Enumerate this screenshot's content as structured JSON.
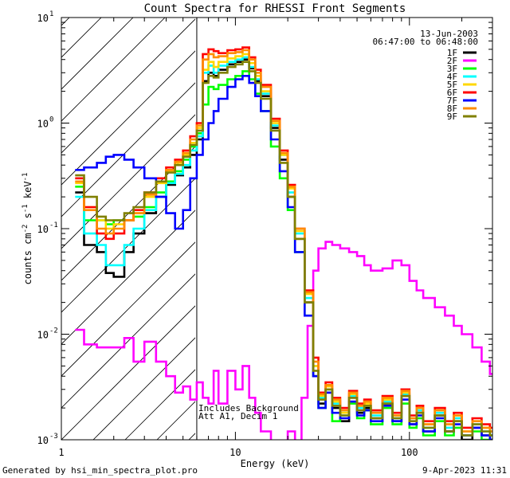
{
  "chart_data": {
    "type": "line",
    "title": "Count Spectra for RHESSI Front Segments",
    "xlabel": "Energy (keV)",
    "ylabel": "counts cm-2 s-1 keV-1",
    "x_scale": "log",
    "y_scale": "log",
    "xlim": [
      1.0,
      300.0
    ],
    "ylim": [
      0.001,
      10.0
    ],
    "x_ticks": [
      {
        "value": 1,
        "label": "1"
      },
      {
        "value": 10,
        "label": "10"
      },
      {
        "value": 100,
        "label": "100"
      }
    ],
    "y_ticks": [
      {
        "value": 0.001,
        "base": "10",
        "exp": "-3"
      },
      {
        "value": 0.01,
        "base": "10",
        "exp": "-2"
      },
      {
        "value": 0.1,
        "base": "10",
        "exp": "-1"
      },
      {
        "value": 1,
        "base": "10",
        "exp": "0"
      },
      {
        "value": 10,
        "base": "10",
        "exp": "1"
      }
    ],
    "hatched_region_keV": [
      1.0,
      6.0
    ],
    "date": "13-Jun-2003",
    "time_range": "06:47:00 to 06:48:00",
    "annotation_line1": "Includes Background",
    "annotation_line2": "Att A1, Decim 1",
    "footer_left": "Generated by hsi_min_spectra_plot.pro",
    "footer_right": "9-Apr-2023 11:31",
    "series": [
      {
        "name": "1F",
        "color": "#000000",
        "x": [
          1.2,
          1.35,
          1.6,
          1.8,
          2.0,
          2.3,
          2.6,
          3.0,
          3.5,
          4.0,
          4.5,
          5.0,
          5.5,
          6.0,
          6.5,
          7.0,
          7.5,
          8.0,
          9.0,
          10.0,
          11.0,
          12.0,
          13.0,
          14.0,
          16.0,
          18.0,
          20.0,
          22.0,
          25.0,
          28.0,
          30.0,
          33.0,
          36.0,
          40.0,
          45.0,
          50.0,
          55.0,
          60.0,
          70.0,
          80.0,
          90.0,
          100.0,
          110.0,
          120.0,
          140.0,
          160.0,
          180.0,
          200.0,
          230.0,
          260.0,
          290.0
        ],
        "y": [
          0.22,
          0.07,
          0.06,
          0.038,
          0.035,
          0.06,
          0.09,
          0.14,
          0.2,
          0.26,
          0.32,
          0.38,
          0.5,
          0.7,
          2.5,
          3.0,
          2.8,
          3.2,
          3.6,
          3.8,
          4.0,
          3.3,
          2.5,
          1.8,
          0.9,
          0.45,
          0.2,
          0.08,
          0.02,
          0.004,
          0.0022,
          0.0028,
          0.002,
          0.0015,
          0.0025,
          0.0018,
          0.002,
          0.0016,
          0.0022,
          0.0015,
          0.0026,
          0.0014,
          0.0018,
          0.0012,
          0.0017,
          0.0012,
          0.0015,
          0.001,
          0.0013,
          0.0011,
          0.001
        ]
      },
      {
        "name": "2F",
        "color": "#ff00ff",
        "x": [
          1.2,
          1.35,
          1.6,
          1.8,
          2.0,
          2.3,
          2.6,
          3.0,
          3.5,
          4.0,
          4.5,
          5.0,
          5.5,
          6.0,
          6.5,
          7.0,
          7.5,
          8.0,
          9.0,
          10.0,
          11.0,
          12.0,
          13.0,
          14.0,
          16.0,
          18.0,
          20.0,
          22.0,
          24.0,
          26.0,
          28.0,
          30.0,
          33.0,
          36.0,
          40.0,
          45.0,
          50.0,
          55.0,
          60.0,
          70.0,
          80.0,
          90.0,
          100.0,
          110.0,
          120.0,
          140.0,
          160.0,
          180.0,
          200.0,
          230.0,
          260.0,
          290.0
        ],
        "y": [
          0.011,
          0.008,
          0.0075,
          0.0075,
          0.0075,
          0.0092,
          0.0055,
          0.0085,
          0.0055,
          0.004,
          0.0028,
          0.0032,
          0.0024,
          0.0035,
          0.0025,
          0.0022,
          0.0045,
          0.0022,
          0.0045,
          0.003,
          0.005,
          0.0025,
          0.0018,
          0.0012,
          0.0008,
          0.0008,
          0.0012,
          0.0009,
          0.0025,
          0.012,
          0.04,
          0.065,
          0.075,
          0.07,
          0.065,
          0.06,
          0.055,
          0.045,
          0.04,
          0.042,
          0.05,
          0.045,
          0.032,
          0.026,
          0.022,
          0.018,
          0.015,
          0.012,
          0.01,
          0.0075,
          0.0055,
          0.0042
        ]
      },
      {
        "name": "3F",
        "color": "#00ff00",
        "x": [
          1.2,
          1.35,
          1.6,
          1.8,
          2.0,
          2.3,
          2.6,
          3.0,
          3.5,
          4.0,
          4.5,
          5.0,
          5.5,
          6.0,
          6.5,
          7.0,
          7.5,
          8.0,
          9.0,
          10.0,
          11.0,
          12.0,
          13.0,
          14.0,
          16.0,
          18.0,
          20.0,
          22.0,
          25.0,
          28.0,
          30.0,
          33.0,
          36.0,
          40.0,
          45.0,
          50.0,
          55.0,
          60.0,
          70.0,
          80.0,
          90.0,
          100.0,
          110.0,
          120.0,
          140.0,
          160.0,
          180.0,
          200.0,
          230.0,
          260.0,
          290.0
        ],
        "y": [
          0.25,
          0.12,
          0.12,
          0.11,
          0.12,
          0.12,
          0.13,
          0.16,
          0.22,
          0.28,
          0.35,
          0.45,
          0.6,
          0.8,
          1.5,
          2.2,
          2.1,
          2.3,
          2.6,
          2.8,
          3.1,
          2.6,
          1.9,
          1.3,
          0.6,
          0.3,
          0.15,
          0.06,
          0.015,
          0.004,
          0.002,
          0.003,
          0.0015,
          0.0018,
          0.0022,
          0.0016,
          0.0019,
          0.0014,
          0.002,
          0.0014,
          0.0022,
          0.0013,
          0.0016,
          0.0011,
          0.0015,
          0.0011,
          0.0013,
          0.0011,
          0.0012,
          0.001,
          0.0011
        ]
      },
      {
        "name": "4F",
        "color": "#00ffff",
        "x": [
          1.2,
          1.35,
          1.6,
          1.8,
          2.0,
          2.3,
          2.6,
          3.0,
          3.5,
          4.0,
          4.5,
          5.0,
          5.5,
          6.0,
          6.5,
          7.0,
          7.5,
          8.0,
          9.0,
          10.0,
          11.0,
          12.0,
          13.0,
          14.0,
          16.0,
          18.0,
          20.0,
          22.0,
          25.0,
          28.0,
          30.0,
          33.0,
          36.0,
          40.0,
          45.0,
          50.0,
          55.0,
          60.0,
          70.0,
          80.0,
          90.0,
          100.0,
          110.0,
          120.0,
          140.0,
          160.0,
          180.0,
          200.0,
          230.0,
          260.0,
          290.0
        ],
        "y": [
          0.2,
          0.09,
          0.07,
          0.045,
          0.045,
          0.07,
          0.1,
          0.15,
          0.2,
          0.27,
          0.33,
          0.4,
          0.55,
          0.75,
          3.0,
          3.5,
          3.0,
          3.5,
          3.8,
          4.0,
          4.2,
          3.4,
          2.6,
          1.9,
          0.95,
          0.5,
          0.22,
          0.09,
          0.022,
          0.005,
          0.0025,
          0.003,
          0.0022,
          0.0017,
          0.0026,
          0.002,
          0.0021,
          0.0017,
          0.0023,
          0.0016,
          0.0027,
          0.0015,
          0.0019,
          0.0013,
          0.0018,
          0.0013,
          0.0016,
          0.0011,
          0.0014,
          0.0012,
          0.0011
        ]
      },
      {
        "name": "5F",
        "color": "#ffd700",
        "x": [
          1.2,
          1.35,
          1.6,
          1.8,
          2.0,
          2.3,
          2.6,
          3.0,
          3.5,
          4.0,
          4.5,
          5.0,
          5.5,
          6.0,
          6.5,
          7.0,
          7.5,
          8.0,
          9.0,
          10.0,
          11.0,
          12.0,
          13.0,
          14.0,
          16.0,
          18.0,
          20.0,
          22.0,
          25.0,
          28.0,
          30.0,
          33.0,
          36.0,
          40.0,
          45.0,
          50.0,
          55.0,
          60.0,
          70.0,
          80.0,
          90.0,
          100.0,
          110.0,
          120.0,
          140.0,
          160.0,
          180.0,
          200.0,
          230.0,
          260.0,
          290.0
        ],
        "y": [
          0.27,
          0.16,
          0.12,
          0.1,
          0.11,
          0.12,
          0.14,
          0.2,
          0.27,
          0.35,
          0.42,
          0.5,
          0.65,
          0.9,
          3.2,
          3.8,
          3.4,
          3.8,
          4.1,
          4.3,
          4.5,
          3.7,
          2.8,
          2.0,
          1.0,
          0.5,
          0.24,
          0.095,
          0.024,
          0.005,
          0.0026,
          0.0032,
          0.0023,
          0.0018,
          0.0027,
          0.0021,
          0.0022,
          0.0018,
          0.0024,
          0.0017,
          0.0028,
          0.0016,
          0.002,
          0.0014,
          0.0019,
          0.0014,
          0.0017,
          0.0012,
          0.0015,
          0.0013,
          0.0012
        ]
      },
      {
        "name": "6F",
        "color": "#ff0000",
        "x": [
          1.2,
          1.35,
          1.6,
          1.8,
          2.0,
          2.3,
          2.6,
          3.0,
          3.5,
          4.0,
          4.5,
          5.0,
          5.5,
          6.0,
          6.5,
          7.0,
          7.5,
          8.0,
          9.0,
          10.0,
          11.0,
          12.0,
          13.0,
          14.0,
          16.0,
          18.0,
          20.0,
          22.0,
          25.0,
          28.0,
          30.0,
          33.0,
          36.0,
          40.0,
          45.0,
          50.0,
          55.0,
          60.0,
          70.0,
          80.0,
          90.0,
          100.0,
          110.0,
          120.0,
          140.0,
          160.0,
          180.0,
          200.0,
          230.0,
          260.0,
          290.0
        ],
        "y": [
          0.3,
          0.16,
          0.09,
          0.08,
          0.09,
          0.12,
          0.15,
          0.22,
          0.3,
          0.38,
          0.45,
          0.55,
          0.75,
          1.0,
          4.5,
          5.0,
          4.8,
          4.6,
          4.9,
          5.0,
          5.2,
          4.2,
          3.2,
          2.3,
          1.1,
          0.55,
          0.26,
          0.1,
          0.026,
          0.006,
          0.0028,
          0.0035,
          0.0025,
          0.002,
          0.0029,
          0.0022,
          0.0024,
          0.0019,
          0.0026,
          0.0018,
          0.003,
          0.0017,
          0.0021,
          0.0015,
          0.002,
          0.0015,
          0.0018,
          0.0013,
          0.0016,
          0.0014,
          0.0013
        ]
      },
      {
        "name": "7F",
        "color": "#0000ff",
        "x": [
          1.2,
          1.35,
          1.6,
          1.8,
          2.0,
          2.3,
          2.6,
          3.0,
          3.5,
          4.0,
          4.5,
          5.0,
          5.5,
          6.0,
          6.5,
          7.0,
          7.5,
          8.0,
          9.0,
          10.0,
          11.0,
          12.0,
          13.0,
          14.0,
          16.0,
          18.0,
          20.0,
          22.0,
          25.0,
          28.0,
          30.0,
          33.0,
          36.0,
          40.0,
          45.0,
          50.0,
          55.0,
          60.0,
          70.0,
          80.0,
          90.0,
          100.0,
          110.0,
          120.0,
          140.0,
          160.0,
          180.0,
          200.0,
          230.0,
          260.0,
          290.0
        ],
        "y": [
          0.36,
          0.38,
          0.42,
          0.48,
          0.5,
          0.45,
          0.38,
          0.3,
          0.2,
          0.14,
          0.1,
          0.15,
          0.3,
          0.5,
          0.7,
          1.0,
          1.3,
          1.7,
          2.2,
          2.6,
          2.8,
          2.4,
          1.8,
          1.3,
          0.7,
          0.35,
          0.16,
          0.06,
          0.015,
          0.004,
          0.002,
          0.0028,
          0.0018,
          0.0016,
          0.0023,
          0.0017,
          0.0019,
          0.0015,
          0.0021,
          0.0015,
          0.0024,
          0.0014,
          0.0017,
          0.0012,
          0.0016,
          0.0012,
          0.0014,
          0.0011,
          0.0013,
          0.0011,
          0.001
        ]
      },
      {
        "name": "8F",
        "color": "#ff8c00",
        "x": [
          1.2,
          1.35,
          1.6,
          1.8,
          2.0,
          2.3,
          2.6,
          3.0,
          3.5,
          4.0,
          4.5,
          5.0,
          5.5,
          6.0,
          6.5,
          7.0,
          7.5,
          8.0,
          9.0,
          10.0,
          11.0,
          12.0,
          13.0,
          14.0,
          16.0,
          18.0,
          20.0,
          22.0,
          25.0,
          28.0,
          30.0,
          33.0,
          36.0,
          40.0,
          45.0,
          50.0,
          55.0,
          60.0,
          70.0,
          80.0,
          90.0,
          100.0,
          110.0,
          120.0,
          140.0,
          160.0,
          180.0,
          200.0,
          230.0,
          260.0,
          290.0
        ],
        "y": [
          0.28,
          0.15,
          0.1,
          0.09,
          0.1,
          0.12,
          0.14,
          0.21,
          0.28,
          0.36,
          0.43,
          0.52,
          0.7,
          0.95,
          4.0,
          4.5,
          4.2,
          4.3,
          4.6,
          4.7,
          4.9,
          4.0,
          3.0,
          2.2,
          1.05,
          0.52,
          0.25,
          0.1,
          0.025,
          0.0055,
          0.0027,
          0.0033,
          0.0024,
          0.0019,
          0.0028,
          0.0021,
          0.0023,
          0.0018,
          0.0025,
          0.0017,
          0.0029,
          0.0016,
          0.002,
          0.0014,
          0.0019,
          0.0014,
          0.0017,
          0.0012,
          0.0015,
          0.0013,
          0.0012
        ]
      },
      {
        "name": "9F",
        "color": "#808000",
        "x": [
          1.2,
          1.35,
          1.6,
          1.8,
          2.0,
          2.3,
          2.6,
          3.0,
          3.5,
          4.0,
          4.5,
          5.0,
          5.5,
          6.0,
          6.5,
          7.0,
          7.5,
          8.0,
          9.0,
          10.0,
          11.0,
          12.0,
          13.0,
          14.0,
          16.0,
          18.0,
          20.0,
          22.0,
          25.0,
          28.0,
          30.0,
          33.0,
          36.0,
          40.0,
          45.0,
          50.0,
          55.0,
          60.0,
          70.0,
          80.0,
          90.0,
          100.0,
          110.0,
          120.0,
          140.0,
          160.0,
          180.0,
          200.0,
          230.0,
          260.0,
          290.0
        ],
        "y": [
          0.32,
          0.2,
          0.13,
          0.12,
          0.12,
          0.14,
          0.16,
          0.22,
          0.28,
          0.34,
          0.4,
          0.48,
          0.62,
          0.85,
          2.4,
          2.8,
          2.7,
          3.0,
          3.4,
          3.6,
          3.8,
          3.1,
          2.4,
          1.7,
          0.85,
          0.42,
          0.2,
          0.08,
          0.02,
          0.0045,
          0.0024,
          0.003,
          0.0021,
          0.0017,
          0.0025,
          0.0019,
          0.0021,
          0.0016,
          0.0022,
          0.0016,
          0.0026,
          0.0015,
          0.0018,
          0.0013,
          0.0017,
          0.0012,
          0.0015,
          0.0011,
          0.0014,
          0.0012,
          0.0011
        ]
      }
    ]
  }
}
